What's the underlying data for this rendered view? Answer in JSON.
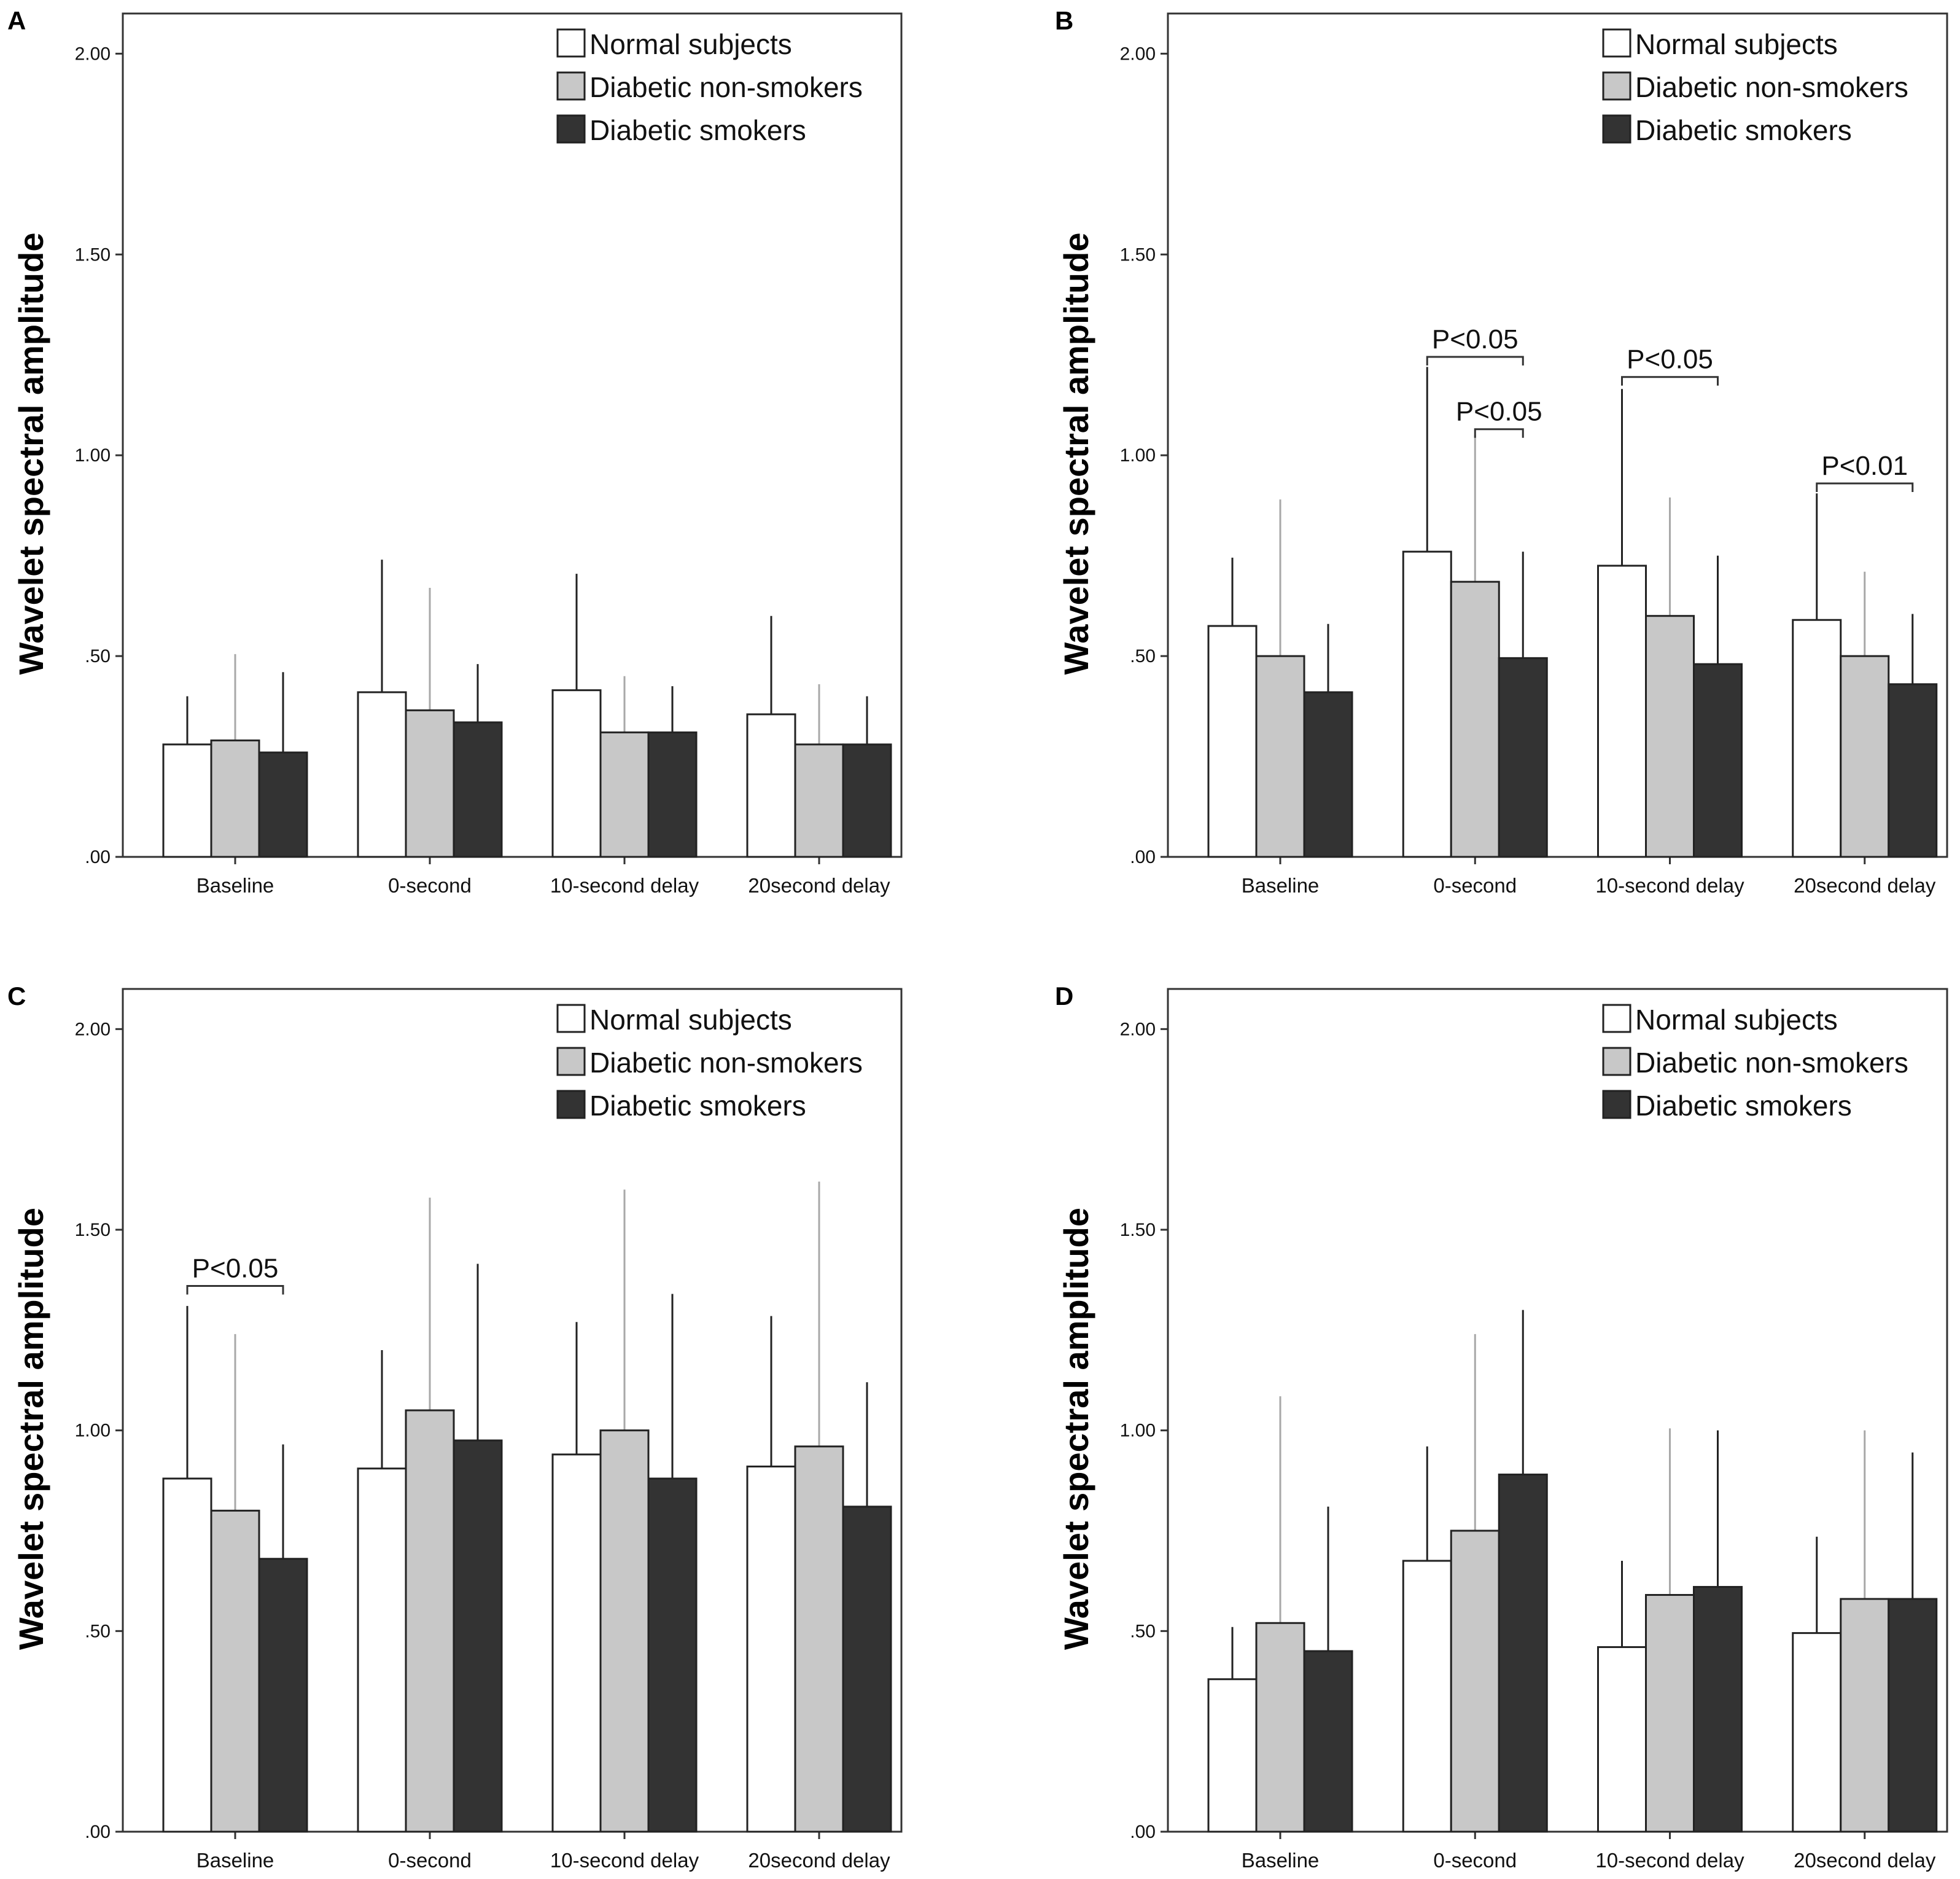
{
  "chart_data": [
    {
      "type": "bar",
      "panel": "A",
      "categories": [
        "Baseline",
        "0-second",
        "10-second delay",
        "20second delay"
      ],
      "ylabel": "Wavelet spectral amplitude",
      "xlabel": "",
      "ylim": [
        0,
        2.1
      ],
      "yticks": [
        ".00",
        ".50",
        "1.00",
        "1.50",
        "2.00"
      ],
      "legend_position": "top-right",
      "series": [
        {
          "name": "Normal subjects",
          "color": "#ffffff",
          "values": [
            0.28,
            0.41,
            0.415,
            0.355
          ],
          "errors": [
            0.4,
            0.74,
            0.705,
            0.6
          ]
        },
        {
          "name": "Diabetic non-smokers",
          "color": "#c8c8c8",
          "values": [
            0.29,
            0.365,
            0.31,
            0.28
          ],
          "errors": [
            0.505,
            0.67,
            0.45,
            0.43
          ]
        },
        {
          "name": "Diabetic smokers",
          "color": "#333333",
          "values": [
            0.26,
            0.335,
            0.31,
            0.28
          ],
          "errors": [
            0.46,
            0.48,
            0.425,
            0.4
          ]
        }
      ],
      "annotations": []
    },
    {
      "type": "bar",
      "panel": "B",
      "categories": [
        "Baseline",
        "0-second",
        "10-second delay",
        "20second delay"
      ],
      "ylabel": "Wavelet spectral amplitude",
      "xlabel": "",
      "ylim": [
        0,
        2.1
      ],
      "yticks": [
        ".00",
        ".50",
        "1.00",
        "1.50",
        "2.00"
      ],
      "legend_position": "top-right",
      "series": [
        {
          "name": "Normal subjects",
          "color": "#ffffff",
          "values": [
            0.575,
            0.76,
            0.725,
            0.59
          ],
          "errors": [
            0.745,
            1.22,
            1.165,
            0.905
          ]
        },
        {
          "name": "Diabetic non-smokers",
          "color": "#c8c8c8",
          "values": [
            0.5,
            0.685,
            0.6,
            0.5
          ],
          "errors": [
            0.89,
            1.05,
            0.895,
            0.71
          ]
        },
        {
          "name": "Diabetic smokers",
          "color": "#333333",
          "values": [
            0.41,
            0.495,
            0.48,
            0.43
          ],
          "errors": [
            0.58,
            0.76,
            0.75,
            0.605
          ]
        }
      ],
      "annotations": [
        {
          "text": "P<0.05",
          "category": "0-second",
          "from": "Normal subjects",
          "to": "Diabetic smokers",
          "y": 1.245
        },
        {
          "text": "P<0.05",
          "category": "0-second",
          "from": "Diabetic non-smokers",
          "to": "Diabetic smokers",
          "y": 1.065
        },
        {
          "text": "P<0.05",
          "category": "10-second delay",
          "from": "Normal subjects",
          "to": "Diabetic smokers",
          "y": 1.195
        },
        {
          "text": "P<0.01",
          "category": "20second delay",
          "from": "Normal subjects",
          "to": "Diabetic smokers",
          "y": 0.93
        }
      ]
    },
    {
      "type": "bar",
      "panel": "C",
      "categories": [
        "Baseline",
        "0-second",
        "10-second delay",
        "20second delay"
      ],
      "ylabel": "Wavelet spectral amplitude",
      "xlabel": "",
      "ylim": [
        0,
        2.1
      ],
      "yticks": [
        ".00",
        ".50",
        "1.00",
        "1.50",
        "2.00"
      ],
      "legend_position": "top-right",
      "series": [
        {
          "name": "Normal subjects",
          "color": "#ffffff",
          "values": [
            0.88,
            0.905,
            0.94,
            0.91
          ],
          "errors": [
            1.31,
            1.2,
            1.27,
            1.285
          ]
        },
        {
          "name": "Diabetic non-smokers",
          "color": "#c8c8c8",
          "values": [
            0.8,
            1.05,
            1.0,
            0.96
          ],
          "errors": [
            1.24,
            1.58,
            1.6,
            1.62
          ]
        },
        {
          "name": "Diabetic smokers",
          "color": "#333333",
          "values": [
            0.68,
            0.975,
            0.88,
            0.81
          ],
          "errors": [
            0.965,
            1.415,
            1.34,
            1.12
          ]
        }
      ],
      "annotations": [
        {
          "text": "P<0.05",
          "category": "Baseline",
          "from": "Normal subjects",
          "to": "Diabetic smokers",
          "y": 1.36
        }
      ]
    },
    {
      "type": "bar",
      "panel": "D",
      "categories": [
        "Baseline",
        "0-second",
        "10-second delay",
        "20second delay"
      ],
      "ylabel": "Wavelet spectral amplitude",
      "xlabel": "",
      "ylim": [
        0,
        2.1
      ],
      "yticks": [
        ".00",
        ".50",
        "1.00",
        "1.50",
        "2.00"
      ],
      "legend_position": "top-right",
      "series": [
        {
          "name": "Normal subjects",
          "color": "#ffffff",
          "values": [
            0.38,
            0.675,
            0.46,
            0.495
          ],
          "errors": [
            0.51,
            0.96,
            0.675,
            0.735
          ]
        },
        {
          "name": "Diabetic non-smokers",
          "color": "#c8c8c8",
          "values": [
            0.52,
            0.75,
            0.59,
            0.58
          ],
          "errors": [
            1.085,
            1.24,
            1.005,
            1.0
          ]
        },
        {
          "name": "Diabetic smokers",
          "color": "#333333",
          "values": [
            0.45,
            0.89,
            0.61,
            0.58
          ],
          "errors": [
            0.81,
            1.3,
            1.0,
            0.945
          ]
        }
      ],
      "annotations": []
    }
  ]
}
